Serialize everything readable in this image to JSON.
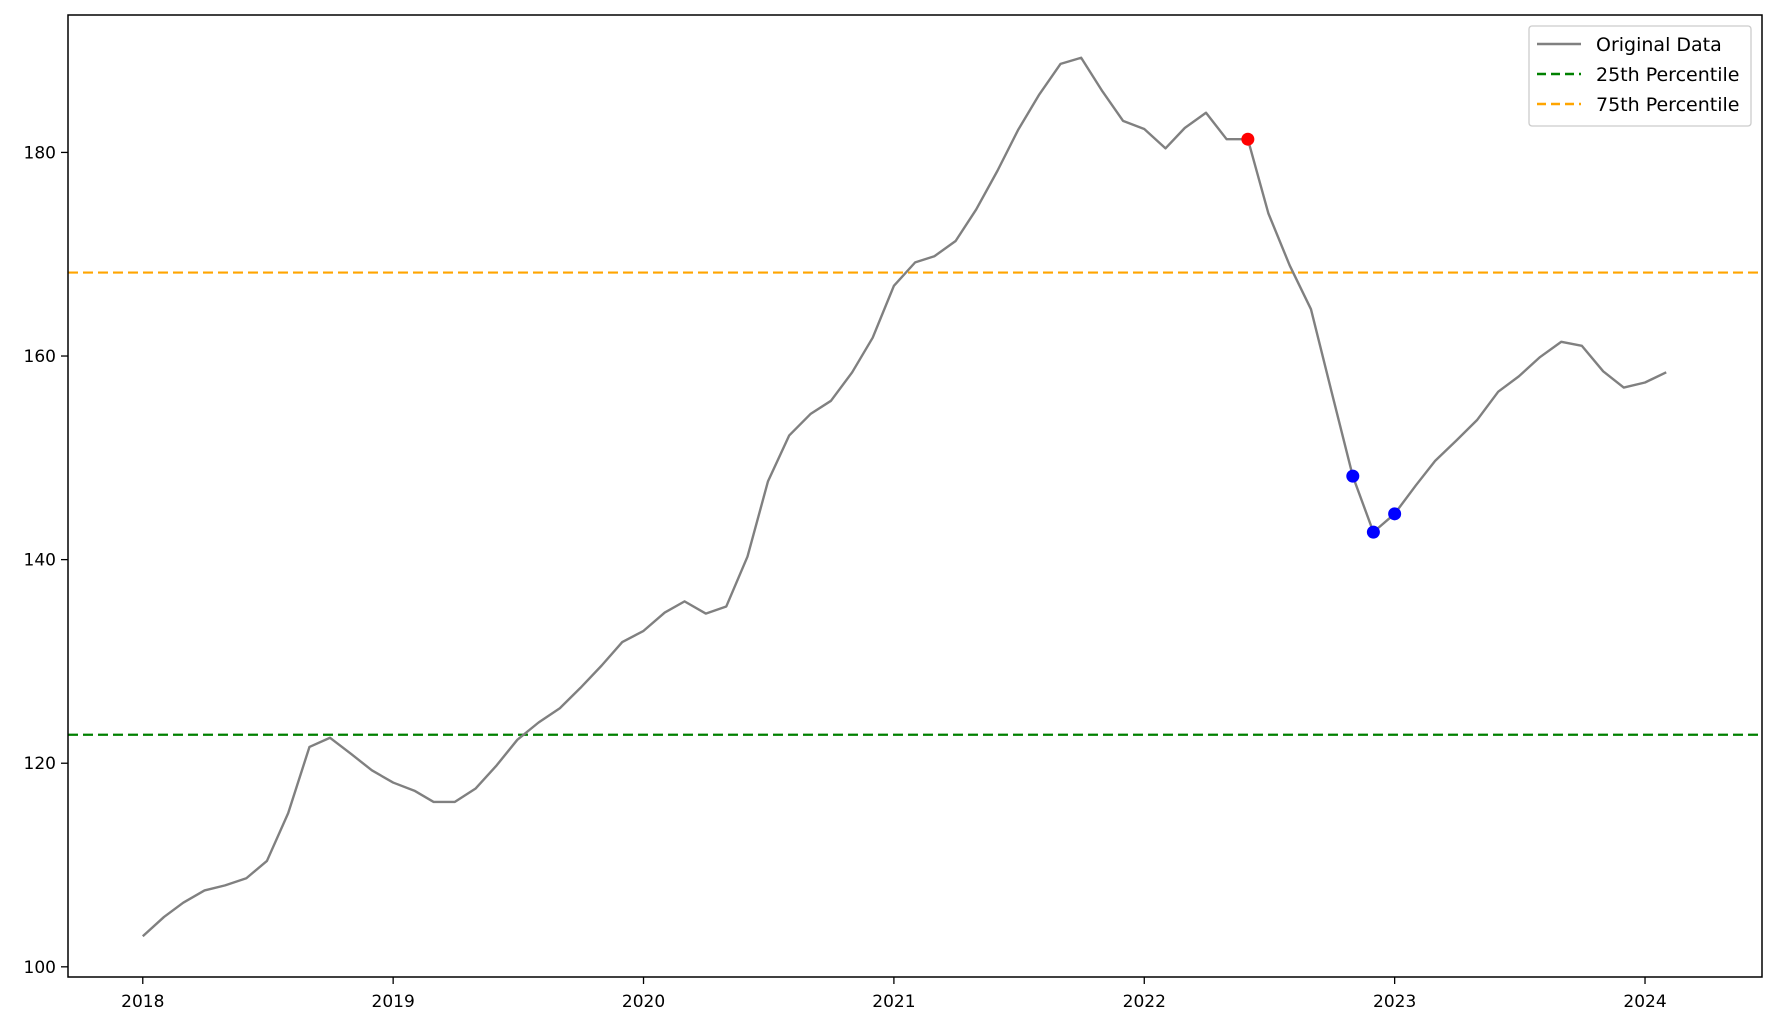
{
  "chart_data": {
    "type": "line",
    "title": "",
    "xlabel": "",
    "ylabel": "",
    "xlim": [
      "2017-09-14",
      "2024-06-20"
    ],
    "ylim": [
      99,
      193.5
    ],
    "x_ticks": [
      "2018",
      "2019",
      "2020",
      "2021",
      "2022",
      "2023",
      "2024"
    ],
    "y_ticks": [
      100,
      120,
      140,
      160,
      180
    ],
    "grid": false,
    "legend_position": "top-right",
    "legend": [
      "Original Data",
      "25th Percentile",
      "75th Percentile"
    ],
    "series": [
      {
        "name": "Original Data",
        "color": "#808080",
        "x": [
          "2018-01",
          "2018-02",
          "2018-03",
          "2018-04",
          "2018-05",
          "2018-06",
          "2018-07",
          "2018-08",
          "2018-09",
          "2018-10",
          "2018-11",
          "2018-12",
          "2019-01",
          "2019-02",
          "2019-03",
          "2019-04",
          "2019-05",
          "2019-06",
          "2019-07",
          "2019-08",
          "2019-09",
          "2019-10",
          "2019-11",
          "2019-12",
          "2020-01",
          "2020-02",
          "2020-03",
          "2020-04",
          "2020-05",
          "2020-06",
          "2020-07",
          "2020-08",
          "2020-09",
          "2020-10",
          "2020-11",
          "2020-12",
          "2021-01",
          "2021-02",
          "2021-03",
          "2021-04",
          "2021-05",
          "2021-06",
          "2021-07",
          "2021-08",
          "2021-09",
          "2021-10",
          "2021-11",
          "2021-12",
          "2022-01",
          "2022-02",
          "2022-03",
          "2022-04",
          "2022-05",
          "2022-06",
          "2022-07",
          "2022-08",
          "2022-09",
          "2022-10",
          "2022-11",
          "2022-12",
          "2023-01",
          "2023-02",
          "2023-03",
          "2023-04",
          "2023-05",
          "2023-06",
          "2023-07",
          "2023-08",
          "2023-09",
          "2023-10",
          "2023-11",
          "2023-12",
          "2024-01",
          "2024-02"
        ],
        "values": [
          103.0,
          104.9,
          106.3,
          107.5,
          108.0,
          108.7,
          110.4,
          115.1,
          121.6,
          122.5,
          120.9,
          119.3,
          118.1,
          117.3,
          116.2,
          116.2,
          117.5,
          119.8,
          122.3,
          124.0,
          125.4,
          127.4,
          129.6,
          131.9,
          133.0,
          134.8,
          135.9,
          134.7,
          135.4,
          140.3,
          147.7,
          152.2,
          154.3,
          155.6,
          158.4,
          161.8,
          166.9,
          169.2,
          169.8,
          171.3,
          174.4,
          178.2,
          182.2,
          185.7,
          188.7,
          189.3,
          186.0,
          183.1,
          182.3,
          180.4,
          182.4,
          183.9,
          181.3,
          181.3,
          174.0,
          168.9,
          164.6,
          156.5,
          148.2,
          142.7,
          144.5,
          147.3,
          149.7,
          151.7,
          153.7,
          156.5,
          158.0,
          159.9,
          161.4,
          161.0,
          158.5,
          156.9,
          157.4,
          158.4
        ]
      }
    ],
    "reference_lines": [
      {
        "name": "25th Percentile",
        "y": 122.8,
        "color": "#008000",
        "style": "dashed"
      },
      {
        "name": "75th Percentile",
        "y": 168.2,
        "color": "#FFA500",
        "style": "dashed"
      }
    ],
    "highlighted_points": [
      {
        "x": "2022-06",
        "y": 181.3,
        "color": "#FF0000"
      },
      {
        "x": "2022-11",
        "y": 148.2,
        "color": "#0000FF"
      },
      {
        "x": "2022-12",
        "y": 142.7,
        "color": "#0000FF"
      },
      {
        "x": "2023-01",
        "y": 144.5,
        "color": "#0000FF"
      }
    ]
  }
}
